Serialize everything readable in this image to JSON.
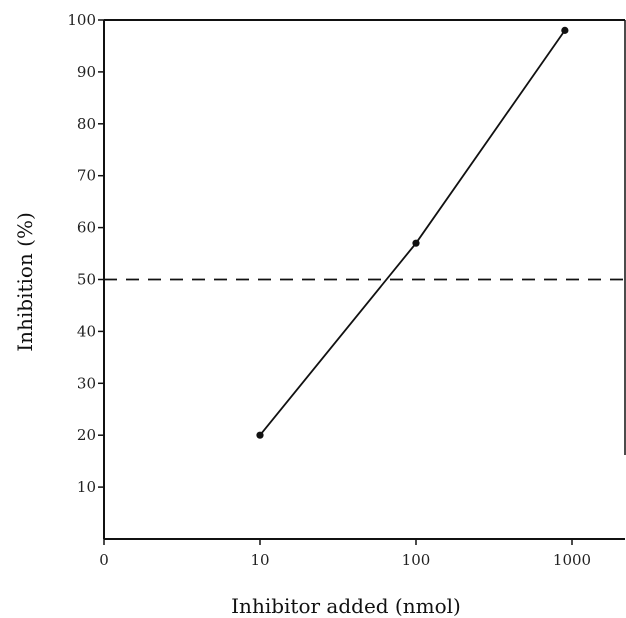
{
  "chart_data": {
    "type": "line",
    "title": "",
    "xlabel": "Inhibitor added (nmol)",
    "ylabel": "Inhibition (%)",
    "x_scale": "log",
    "x_ticks": [
      {
        "value": 1,
        "label": "0"
      },
      {
        "value": 10,
        "label": "10"
      },
      {
        "value": 100,
        "label": "100"
      },
      {
        "value": 1000,
        "label": "1000"
      }
    ],
    "xlim": [
      1,
      1600
    ],
    "ylim": [
      0,
      100
    ],
    "y_ticks": [
      10,
      20,
      30,
      40,
      50,
      60,
      70,
      80,
      90,
      100
    ],
    "y_tick_labels": [
      "10",
      "20",
      "30",
      "40",
      "50",
      "60",
      "70",
      "80",
      "90",
      "100"
    ],
    "series": [
      {
        "points": [
          {
            "x": 10,
            "y": 20
          },
          {
            "x": 100,
            "y": 57
          },
          {
            "x": 900,
            "y": 98
          }
        ]
      }
    ],
    "reference_lines": [
      {
        "axis": "y",
        "value": 50,
        "style": "dashed"
      }
    ],
    "grid": false,
    "frame": "box"
  }
}
